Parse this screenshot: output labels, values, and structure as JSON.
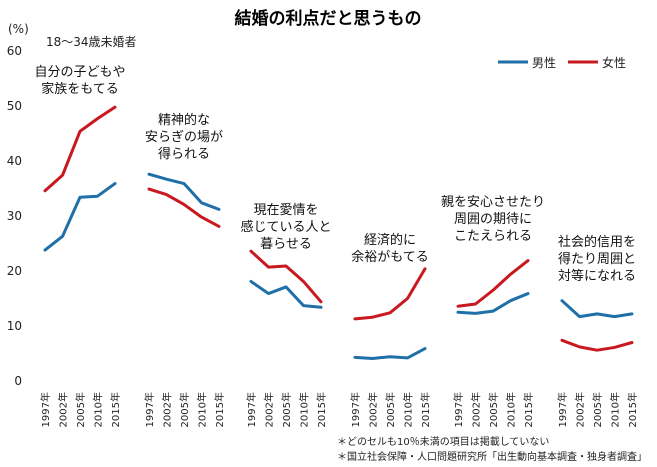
{
  "chart_data": {
    "type": "line",
    "title": "結婚の利点だと思うもの",
    "subtitle": "18～34歳未婚者",
    "yunit": "(%)",
    "ylim": [
      0,
      60
    ],
    "yticks": [
      "0",
      "10",
      "20",
      "30",
      "40",
      "50",
      "60"
    ],
    "grid": false,
    "legend_position": "top-right",
    "years": [
      "1997年",
      "2002年",
      "2005年",
      "2010年",
      "2015年"
    ],
    "series": [
      {
        "name": "男性",
        "color": "#1f6fa8"
      },
      {
        "name": "女性",
        "color": "#c8191f"
      }
    ],
    "groups": [
      {
        "label_lines": [
          "自分の子どもや",
          "家族をもてる"
        ],
        "male": [
          23.8,
          26.3,
          33.4,
          33.6,
          35.9
        ],
        "female": [
          34.6,
          37.4,
          45.4,
          47.7,
          49.8
        ]
      },
      {
        "label_lines": [
          "精神的な",
          "安らぎの場が",
          "得られる"
        ],
        "male": [
          37.6,
          36.7,
          35.9,
          32.4,
          31.2
        ],
        "female": [
          34.9,
          33.9,
          32.1,
          29.8,
          28.1
        ]
      },
      {
        "label_lines": [
          "現在愛情を",
          "感じている人と",
          "暮らせる"
        ],
        "male": [
          18.1,
          15.9,
          17.1,
          13.7,
          13.4
        ],
        "female": [
          23.6,
          20.7,
          20.9,
          18.1,
          14.4
        ]
      },
      {
        "label_lines": [
          "経済的に",
          "余裕がもてる"
        ],
        "male": [
          4.3,
          4.1,
          4.4,
          4.2,
          5.9
        ],
        "female": [
          11.3,
          11.6,
          12.4,
          15.0,
          20.4
        ]
      },
      {
        "label_lines": [
          "親を安心させたり",
          "周囲の期待に",
          "こたえられる"
        ],
        "male": [
          12.5,
          12.3,
          12.7,
          14.6,
          15.9
        ],
        "female": [
          13.6,
          14.0,
          16.5,
          19.4,
          21.9
        ]
      },
      {
        "label_lines": [
          "社会的信用を",
          "得たり周囲と",
          "対等になれる"
        ],
        "male": [
          14.6,
          11.7,
          12.2,
          11.7,
          12.2
        ],
        "female": [
          7.4,
          6.2,
          5.6,
          6.1,
          7.0
        ]
      }
    ],
    "notes": [
      "＊どのセルも10％未満の項目は掲載していない",
      "＊国立社会保障・人口問題研究所「出生動向基本調査・独身者調査」"
    ]
  }
}
